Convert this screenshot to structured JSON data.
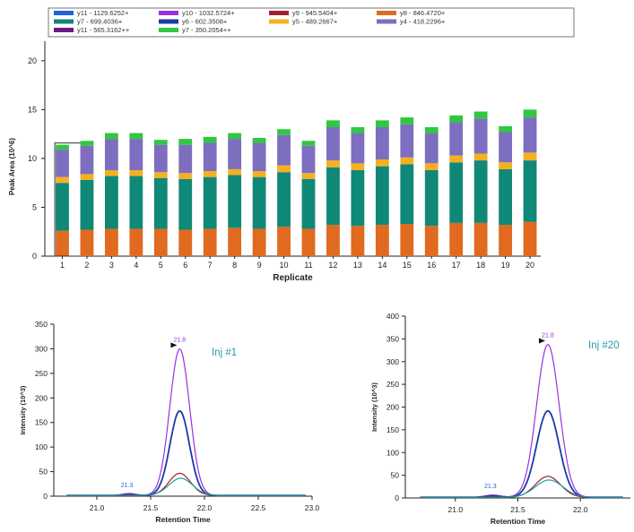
{
  "chart_data": [
    {
      "type": "bar",
      "stacked": true,
      "xlabel": "Replicate",
      "ylabel": "Peak Area (10^6)",
      "ylim": [
        0,
        22
      ],
      "yticks": [
        "0",
        "5",
        "10",
        "15",
        "20"
      ],
      "legend_position": "top",
      "categories": [
        "1",
        "2",
        "3",
        "4",
        "5",
        "6",
        "7",
        "8",
        "9",
        "10",
        "11",
        "12",
        "13",
        "14",
        "15",
        "16",
        "17",
        "18",
        "19",
        "20"
      ],
      "legend": [
        {
          "label": "y11 - 1129.6252+",
          "color": "#1f5fe0"
        },
        {
          "label": "y10 - 1032.5724+",
          "color": "#9b30e0"
        },
        {
          "label": "y9 - 945.5404+",
          "color": "#a02030"
        },
        {
          "label": "y8 - 846.4720+",
          "color": "#e06a1f"
        },
        {
          "label": "y7 - 699.4036+",
          "color": "#108878"
        },
        {
          "label": "y6 - 602.3508+",
          "color": "#1a3aa8"
        },
        {
          "label": "y5 - 489.2667+",
          "color": "#f5b020"
        },
        {
          "label": "y4 - 418.2296+",
          "color": "#7e6ec0"
        },
        {
          "label": "y11 - 565.3162++",
          "color": "#6a1a80"
        },
        {
          "label": "y7 - 350.2054++",
          "color": "#2fc840"
        }
      ],
      "series": [
        {
          "name": "y8 - 846.4720+",
          "color": "#e06a1f",
          "values": [
            2.6,
            2.7,
            2.8,
            2.8,
            2.8,
            2.7,
            2.8,
            2.9,
            2.8,
            3.0,
            2.8,
            3.2,
            3.1,
            3.2,
            3.3,
            3.1,
            3.4,
            3.4,
            3.2,
            3.5
          ]
        },
        {
          "name": "y7 - 699.4036+",
          "color": "#108878",
          "values": [
            4.9,
            5.1,
            5.4,
            5.4,
            5.2,
            5.2,
            5.3,
            5.4,
            5.3,
            5.6,
            5.1,
            5.9,
            5.7,
            6.0,
            6.1,
            5.7,
            6.2,
            6.4,
            5.7,
            6.3
          ]
        },
        {
          "name": "y5 - 489.2667+",
          "color": "#f5b020",
          "values": [
            0.6,
            0.6,
            0.6,
            0.6,
            0.6,
            0.6,
            0.6,
            0.6,
            0.6,
            0.7,
            0.6,
            0.7,
            0.7,
            0.7,
            0.7,
            0.7,
            0.7,
            0.7,
            0.7,
            0.8
          ]
        },
        {
          "name": "y4 - 418.2296+",
          "color": "#7e6ec0",
          "values": [
            2.8,
            2.9,
            3.2,
            3.2,
            2.8,
            2.9,
            2.9,
            3.1,
            2.9,
            3.1,
            2.8,
            3.4,
            3.1,
            3.3,
            3.4,
            3.1,
            3.4,
            3.6,
            3.1,
            3.6
          ]
        },
        {
          "name": "y7 - 350.2054++",
          "color": "#2fc840",
          "values": [
            0.5,
            0.5,
            0.6,
            0.6,
            0.5,
            0.6,
            0.6,
            0.6,
            0.5,
            0.6,
            0.5,
            0.7,
            0.6,
            0.7,
            0.7,
            0.6,
            0.7,
            0.7,
            0.6,
            0.8
          ]
        }
      ]
    },
    {
      "type": "line",
      "annotation": "Inj #1",
      "xlabel": "Retention Time",
      "ylabel": "Intensity (10^3)",
      "xlim": [
        20.6,
        23.0
      ],
      "ylim": [
        0,
        350
      ],
      "xticks": [
        "21.0",
        "21.5",
        "22.0",
        "22.5",
        "23.0"
      ],
      "yticks": [
        "0",
        "50",
        "100",
        "150",
        "200",
        "250",
        "300",
        "350"
      ],
      "peak_labels": [
        {
          "text": "21.8",
          "x": 21.77,
          "y": 300,
          "color": "#9b30e0"
        },
        {
          "text": "21.3",
          "x": 21.28,
          "y": 4,
          "color": "#1f5fe0"
        }
      ],
      "series": [
        {
          "color": "#9b30e0",
          "peak_x": 21.77,
          "peak_y": 298,
          "sigma": 0.092,
          "small_peak": 4
        },
        {
          "color": "#1a3aa8",
          "peak_x": 21.77,
          "peak_y": 172,
          "sigma": 0.09,
          "small_peak": 2
        },
        {
          "color": "#a02030",
          "peak_x": 21.77,
          "peak_y": 45,
          "sigma": 0.1,
          "small_peak": 1
        },
        {
          "color": "#1f9fa0",
          "peak_x": 21.78,
          "peak_y": 35,
          "sigma": 0.11,
          "small_peak": 0
        }
      ]
    },
    {
      "type": "line",
      "annotation": "Inj #20",
      "xlabel": "Retention Time",
      "ylabel": "Intensity (10^3)",
      "xlim": [
        20.6,
        22.4
      ],
      "ylim": [
        0,
        400
      ],
      "xticks": [
        "21.0",
        "21.5",
        "22.0"
      ],
      "yticks": [
        "0",
        "50",
        "100",
        "150",
        "200",
        "250",
        "300",
        "350",
        "400"
      ],
      "peak_labels": [
        {
          "text": "21.8",
          "x": 21.74,
          "y": 338,
          "color": "#9b30e0"
        },
        {
          "text": "21.3",
          "x": 21.28,
          "y": 6,
          "color": "#1f5fe0"
        }
      ],
      "series": [
        {
          "color": "#9b30e0",
          "peak_x": 21.74,
          "peak_y": 336,
          "sigma": 0.09,
          "small_peak": 5
        },
        {
          "color": "#1a3aa8",
          "peak_x": 21.74,
          "peak_y": 190,
          "sigma": 0.09,
          "small_peak": 3
        },
        {
          "color": "#a02030",
          "peak_x": 21.74,
          "peak_y": 46,
          "sigma": 0.1,
          "small_peak": 1
        },
        {
          "color": "#1f9fa0",
          "peak_x": 21.75,
          "peak_y": 38,
          "sigma": 0.11,
          "small_peak": 0
        }
      ]
    }
  ]
}
